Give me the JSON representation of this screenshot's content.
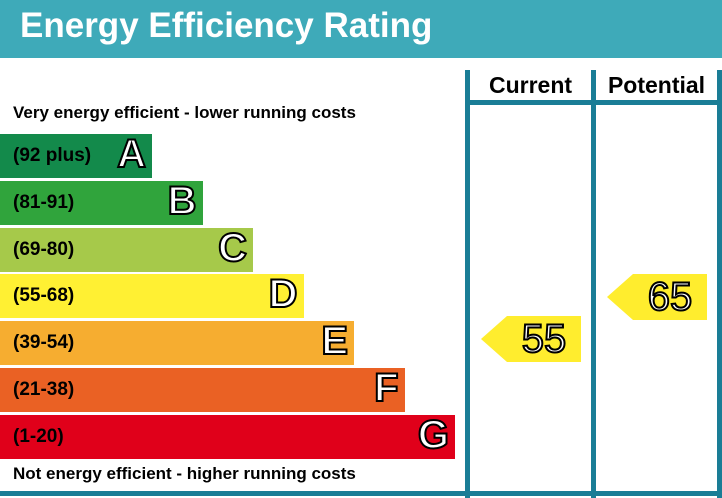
{
  "title": "Energy Efficiency Rating",
  "columns": {
    "current": "Current",
    "potential": "Potential"
  },
  "captions": {
    "top": "Very energy efficient - lower running costs",
    "bottom": "Not energy efficient - higher running costs"
  },
  "colors": {
    "header": "#3eaab9",
    "frame": "#1a7d96",
    "arrow": "#ffed2e"
  },
  "chart_data": {
    "type": "bar",
    "categories": [
      "A",
      "B",
      "C",
      "D",
      "E",
      "F",
      "G"
    ],
    "bands": [
      {
        "letter": "A",
        "range": "(92 plus)",
        "color": "#138a4b"
      },
      {
        "letter": "B",
        "range": "(81-91)",
        "color": "#30a43c"
      },
      {
        "letter": "C",
        "range": "(69-80)",
        "color": "#a6c94a"
      },
      {
        "letter": "D",
        "range": "(55-68)",
        "color": "#fff033"
      },
      {
        "letter": "E",
        "range": "(39-54)",
        "color": "#f6ad30"
      },
      {
        "letter": "F",
        "range": "(21-38)",
        "color": "#ea6124"
      },
      {
        "letter": "G",
        "range": "(1-20)",
        "color": "#e0001a"
      }
    ],
    "current": {
      "value": 55,
      "label": "55"
    },
    "potential": {
      "value": 65,
      "label": "65"
    }
  }
}
